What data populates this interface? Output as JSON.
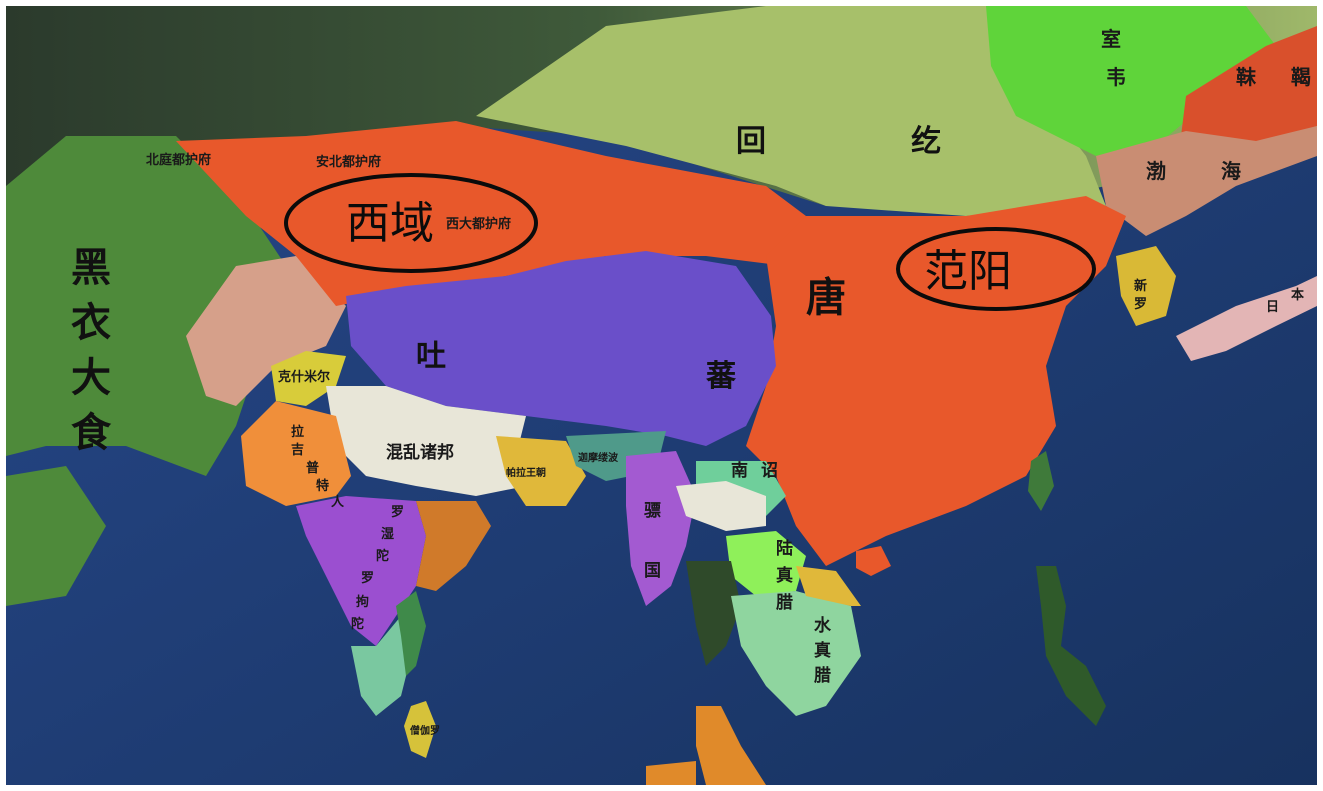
{
  "map": {
    "colors": {
      "ocean": "#1f3f7a",
      "tang": "#e8582b",
      "tibet": "#6a4fc9",
      "uyghur": "#a7c06a",
      "abbasid": "#4e8a3a",
      "khitan": "#5fd43a",
      "balhae": "#c98d73",
      "silla": "#d9b936",
      "japan": "#e3b5b5",
      "pyu": "#a35ad1",
      "nanzhao": "#6fcf9b",
      "chenla": "#8fd59f",
      "rashtrakuta": "#9b4fd0",
      "gurjara": "#f08f3a",
      "tokhara": "#d6a08a",
      "mixed": "#e8e6d8",
      "ellipse": "#0b0b0b"
    },
    "labels": {
      "xiyu": "西域",
      "fanyang": "范阳",
      "tang": "唐",
      "huihe_1": "回",
      "huihe_2": "纥",
      "tubo_1": "吐",
      "tubo_2": "蕃",
      "heiyidashi_1": "黑",
      "heiyidashi_2": "衣",
      "heiyidashi_3": "大",
      "heiyidashi_4": "食",
      "bohai_1": "渤",
      "bohai_2": "海",
      "shiwei_1": "室",
      "shiwei_2": "韦",
      "mohe_1": "靺",
      "mohe_2": "鞨",
      "xinluo_1": "新",
      "xinluo_2": "罗",
      "riben_1": "日",
      "riben_2": "本",
      "hunluanzhubang": "混乱诸邦",
      "nanzhao_1": "南",
      "nanzhao_2": "诏",
      "piaoguo_1": "骠",
      "piaoguo_2": "国",
      "luzhenla_1": "陆",
      "luzhenla_2": "真",
      "luzhenla_3": "腊",
      "shuizhenla_1": "水",
      "shuizhenla_2": "真",
      "shuizhenla_3": "腊",
      "lajipute_1": "拉",
      "lajipute_2": "吉",
      "lajipute_3": "普",
      "lajipute_4": "特",
      "lajipute_5": "人",
      "rashtrakuta_1": "罗",
      "rashtrakuta_2": "湿",
      "rashtrakuta_3": "陀",
      "rashtrakuta_4": "罗",
      "rashtrakuta_5": "拘",
      "rashtrakuta_6": "陀",
      "anxi": "西大都护府",
      "beiting": "北庭都护府",
      "anbei": "安北都护府",
      "kashmir": "克什米尔",
      "pala": "帕拉王朝",
      "kamarupa": "迦摩缕波",
      "ceylon": "僧伽罗"
    }
  }
}
